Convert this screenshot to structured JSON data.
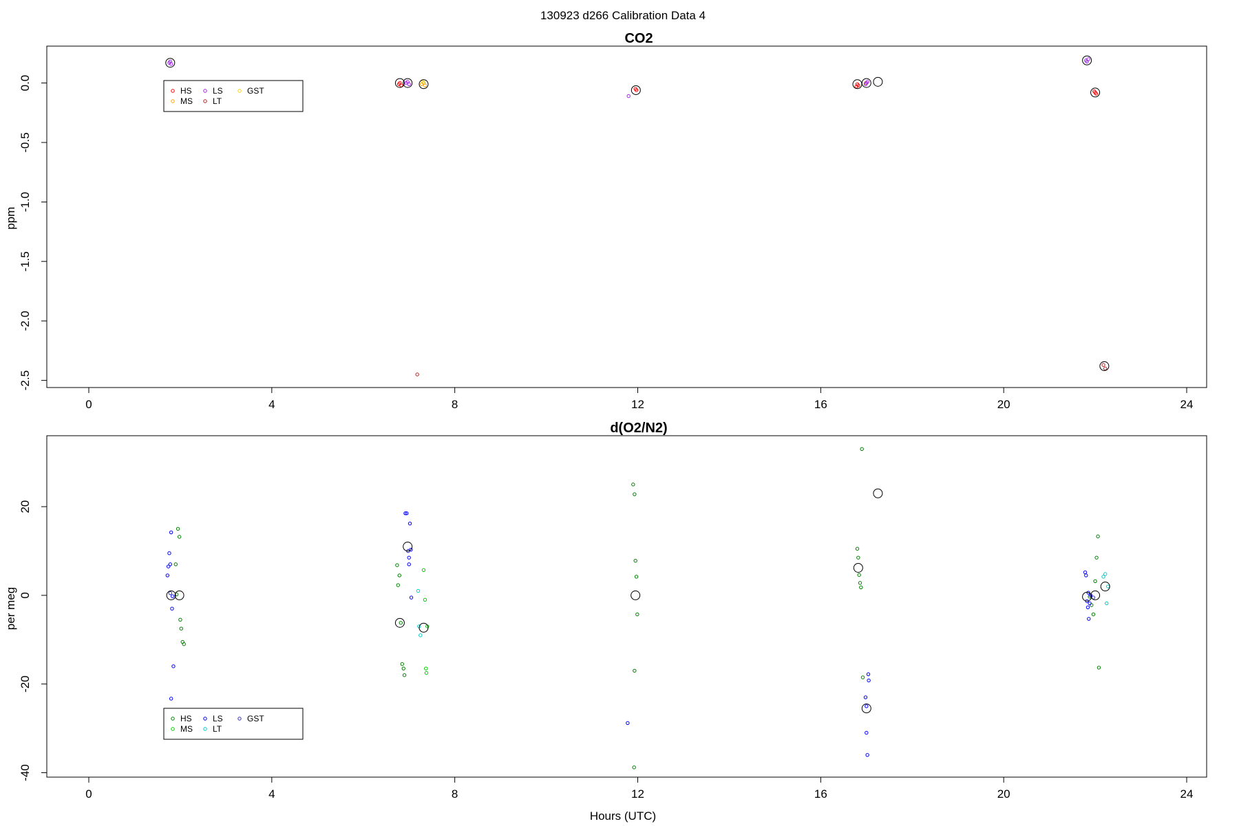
{
  "main_title": "130923   d266   Calibration Data 4",
  "xlabel": "Hours (UTC)",
  "colors": {
    "HS": "#ff0000",
    "MS": "#ffa500",
    "LS": "#a020f0",
    "LT": "#b22222",
    "GST": "#ffd700",
    "HS2": "#008000",
    "MS2": "#00cc00",
    "LS2": "#0000ff",
    "LT2": "#00cccc",
    "GST2": "#3333aa"
  },
  "chart_data": [
    {
      "type": "scatter",
      "title": "CO2",
      "xlabel": "",
      "ylabel": "ppm",
      "xlim": [
        -0.9,
        24.4
      ],
      "ylim": [
        -2.56,
        0.31
      ],
      "xticks": [
        0,
        4,
        8,
        12,
        16,
        20,
        24
      ],
      "xtick_labels": [
        "0",
        "4",
        "8",
        "12",
        "16",
        "20",
        "24"
      ],
      "yticks": [
        0.0,
        -0.5,
        -1.0,
        -1.5,
        -2.0,
        -2.5
      ],
      "ytick_labels": [
        "0.0",
        "-0.5",
        "-1.0",
        "-1.5",
        "-2.0",
        "-2.5"
      ],
      "legend": {
        "placement": "top-left",
        "entries": [
          {
            "label": "HS",
            "color": "#ff0000"
          },
          {
            "label": "MS",
            "color": "#ffa500"
          },
          {
            "label": "LS",
            "color": "#a020f0"
          },
          {
            "label": "LT",
            "color": "#b22222"
          },
          {
            "label": "GST",
            "color": "#ffd700"
          }
        ]
      },
      "series": [
        {
          "name": "HS",
          "color": "#ff0000",
          "x": [
            6.78,
            6.8,
            6.83,
            11.95,
            11.97,
            16.78,
            16.8,
            16.82,
            21.98,
            22.0,
            22.02
          ],
          "y": [
            -0.01,
            0.0,
            -0.02,
            -0.05,
            -0.06,
            -0.03,
            -0.01,
            -0.02,
            -0.07,
            -0.08,
            -0.09
          ]
        },
        {
          "name": "MS",
          "color": "#ffa500",
          "x": [
            7.28,
            7.32,
            7.35,
            16.98
          ],
          "y": [
            -0.01,
            0.0,
            -0.02,
            0.0
          ]
        },
        {
          "name": "LS",
          "color": "#a020f0",
          "x": [
            1.76,
            1.78,
            1.8,
            6.94,
            6.97,
            7.0,
            11.8,
            16.98,
            17.0,
            17.02,
            21.8,
            21.82,
            21.85
          ],
          "y": [
            0.17,
            0.18,
            0.16,
            0.0,
            0.01,
            -0.01,
            -0.11,
            -0.01,
            0.0,
            0.01,
            0.19,
            0.18,
            0.2
          ]
        },
        {
          "name": "LT",
          "color": "#b22222",
          "x": [
            7.18,
            22.18,
            22.22
          ],
          "y": [
            -2.45,
            -2.37,
            -2.4
          ]
        },
        {
          "name": "GST",
          "color": "#ffd700",
          "x": [
            7.3
          ],
          "y": [
            0.01
          ]
        }
      ],
      "means": {
        "x": [
          1.78,
          6.8,
          6.97,
          7.32,
          11.96,
          16.8,
          17.0,
          17.25,
          21.82,
          22.0,
          22.2
        ],
        "y": [
          0.17,
          0.0,
          0.0,
          -0.01,
          -0.06,
          -0.01,
          0.0,
          0.01,
          0.19,
          -0.08,
          -2.38
        ]
      }
    },
    {
      "type": "scatter",
      "title": "d(O2/N2)",
      "xlabel": "Hours (UTC)",
      "ylabel": "per meg",
      "xlim": [
        -0.9,
        24.4
      ],
      "ylim": [
        -41,
        36
      ],
      "xticks": [
        0,
        4,
        8,
        12,
        16,
        20,
        24
      ],
      "xtick_labels": [
        "0",
        "4",
        "8",
        "12",
        "16",
        "20",
        "24"
      ],
      "yticks": [
        20,
        0,
        -20,
        -40
      ],
      "ytick_labels": [
        "20",
        "0",
        "-20",
        "-40"
      ],
      "legend": {
        "placement": "bottom-left",
        "entries": [
          {
            "label": "HS",
            "color": "#008000"
          },
          {
            "label": "MS",
            "color": "#00cc00"
          },
          {
            "label": "LS",
            "color": "#0000ff"
          },
          {
            "label": "LT",
            "color": "#00cccc"
          },
          {
            "label": "GST",
            "color": "#3333aa"
          }
        ]
      },
      "series": [
        {
          "name": "HS",
          "color": "#008000",
          "x": [
            1.9,
            1.95,
            1.98,
            2.0,
            2.02,
            2.05,
            2.08,
            1.92,
            6.74,
            6.76,
            6.79,
            6.82,
            6.85,
            6.88,
            6.9,
            11.9,
            11.93,
            11.95,
            11.97,
            11.99,
            11.93,
            11.92,
            16.8,
            16.82,
            16.84,
            16.86,
            16.88,
            16.9,
            16.92,
            21.88,
            21.92,
            21.96,
            22.0,
            22.03,
            22.06,
            22.08
          ],
          "y": [
            7.0,
            15.0,
            13.2,
            -5.5,
            -7.5,
            -10.5,
            -11.0,
            0.2,
            6.8,
            2.3,
            4.5,
            -6.2,
            -15.5,
            -16.5,
            -18.0,
            25.0,
            22.8,
            7.8,
            4.2,
            -4.3,
            -17.0,
            -38.8,
            10.5,
            8.5,
            4.6,
            2.8,
            1.8,
            33.0,
            -18.5,
            -0.3,
            -2.2,
            -4.3,
            3.2,
            8.5,
            13.3,
            -16.3
          ],
          "dash": false
        },
        {
          "name": "MS",
          "color": "#00cc00",
          "x": [
            7.32,
            7.35,
            7.37,
            7.38,
            7.4
          ],
          "y": [
            5.7,
            -1.0,
            -16.5,
            -17.5,
            -7.0
          ],
          "dash": false
        },
        {
          "name": "LS",
          "color": "#0000ff",
          "x": [
            1.72,
            1.74,
            1.76,
            1.78,
            1.8,
            1.82,
            1.85,
            1.8,
            1.83,
            6.92,
            6.95,
            6.98,
            7.0,
            7.02,
            7.04,
            7.05,
            7.0,
            11.78,
            16.98,
            17.0,
            17.02,
            17.04,
            17.05,
            17.0,
            21.78,
            21.8,
            21.82,
            21.84,
            21.86,
            21.88,
            21.9,
            21.85
          ],
          "y": [
            4.5,
            6.5,
            9.5,
            7.0,
            14.2,
            -3.0,
            -16.0,
            -23.3,
            -0.2,
            18.5,
            18.5,
            10.0,
            8.5,
            16.2,
            10.3,
            -0.5,
            7.0,
            -28.8,
            -23.0,
            -31.0,
            -36.0,
            -17.8,
            -19.2,
            -25.0,
            5.2,
            4.5,
            -1.3,
            -2.7,
            -5.3,
            -1.8,
            0.0,
            0.6
          ],
          "dash": false
        },
        {
          "name": "LT",
          "color": "#00cccc",
          "x": [
            7.2,
            7.22,
            7.25,
            22.18,
            22.22,
            22.25,
            22.28
          ],
          "y": [
            1.0,
            -7.0,
            -9.0,
            4.2,
            4.8,
            -1.8,
            2.0
          ],
          "dash": false
        },
        {
          "name": "GST",
          "color": "#3333aa",
          "x": [
            1.78,
            6.98,
            21.96
          ],
          "y": [
            0.5,
            10.0,
            -0.5
          ],
          "dash": false
        }
      ],
      "means": {
        "x": [
          1.8,
          1.98,
          6.8,
          6.97,
          7.32,
          11.95,
          16.82,
          17.0,
          17.25,
          21.82,
          22.0,
          22.22
        ],
        "y": [
          0.0,
          0.0,
          -6.2,
          11.0,
          -7.3,
          0.0,
          6.2,
          -25.5,
          23.0,
          -0.3,
          0.0,
          2.0
        ]
      }
    }
  ]
}
